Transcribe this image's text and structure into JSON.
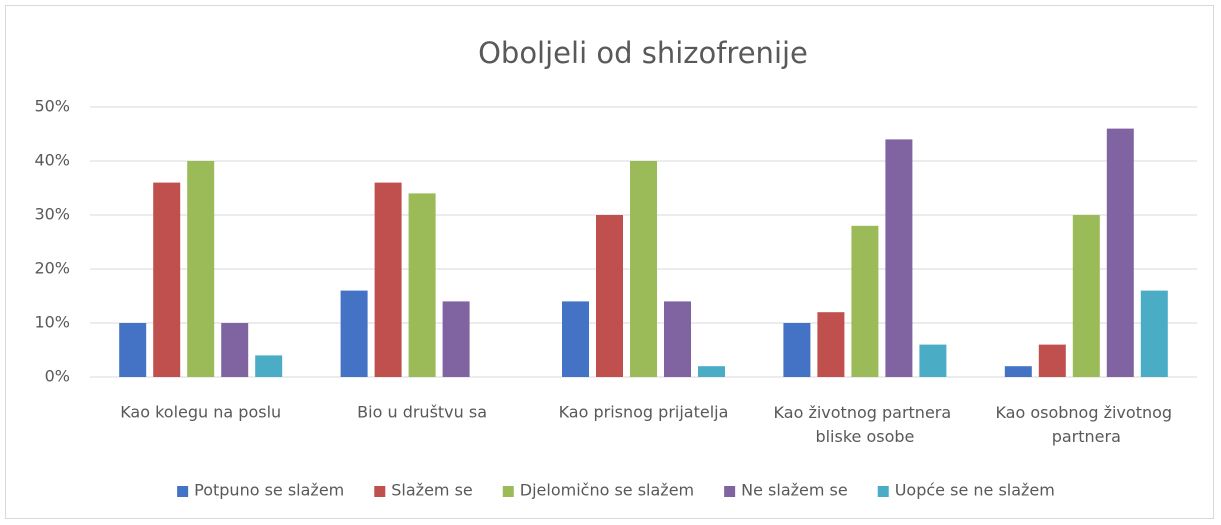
{
  "chart_data": {
    "type": "bar",
    "title": "Oboljeli od shizofrenije",
    "categories": [
      "Kao kolegu na poslu",
      "Bio u društvu sa",
      "Kao prisnog prijatelja",
      "Kao životnog partnera bliske osobe",
      "Kao osobnog životnog partnera"
    ],
    "series": [
      {
        "name": "Potpuno se slažem",
        "color": "#4472c4",
        "values": [
          10,
          16,
          14,
          10,
          2
        ]
      },
      {
        "name": "Slažem se",
        "color": "#c0504d",
        "values": [
          36,
          36,
          30,
          12,
          6
        ]
      },
      {
        "name": "Djelomično se slažem",
        "color": "#9bbb59",
        "values": [
          40,
          34,
          40,
          28,
          30
        ]
      },
      {
        "name": "Ne slažem se",
        "color": "#8064a2",
        "values": [
          10,
          14,
          14,
          44,
          46
        ]
      },
      {
        "name": "Uopće se ne slažem",
        "color": "#4bacc6",
        "values": [
          4,
          0,
          2,
          6,
          16
        ]
      }
    ],
    "ylim": [
      0,
      50
    ],
    "yticks": [
      {
        "value": 0,
        "label": "0%"
      },
      {
        "value": 10,
        "label": "10%"
      },
      {
        "value": 20,
        "label": "20%"
      },
      {
        "value": 30,
        "label": "30%"
      },
      {
        "value": 40,
        "label": "40%"
      },
      {
        "value": 50,
        "label": "50%"
      }
    ],
    "grid": true,
    "legend": "bottom"
  }
}
